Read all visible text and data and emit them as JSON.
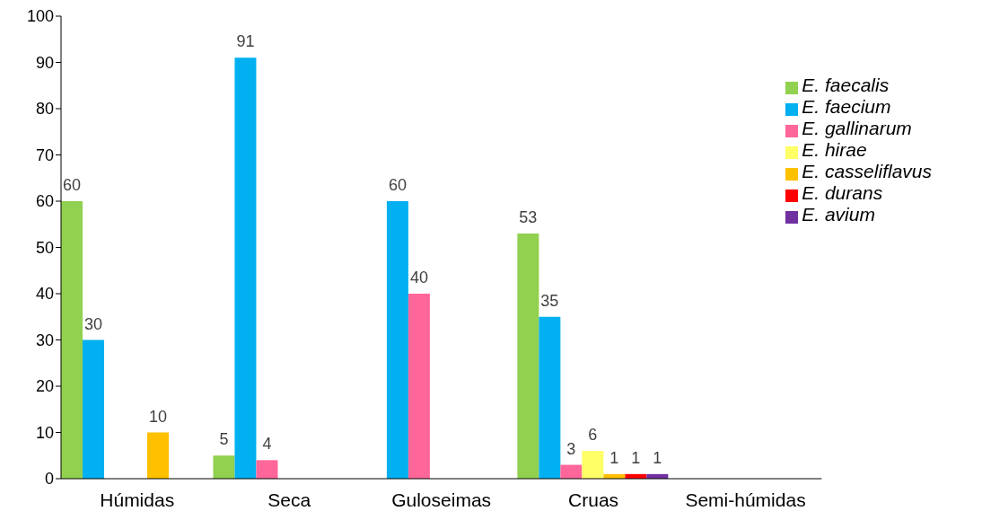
{
  "chart_data": {
    "type": "bar",
    "categories": [
      "Húmidas",
      "Seca",
      "Guloseimas",
      "Cruas",
      "Semi-húmidas"
    ],
    "series": [
      {
        "name": "E. faecalis",
        "color": "#92d050",
        "values": [
          60,
          5,
          null,
          53,
          null
        ]
      },
      {
        "name": "E. faecium",
        "color": "#00b0f0",
        "values": [
          30,
          91,
          60,
          35,
          null
        ]
      },
      {
        "name": "E. gallinarum",
        "color": "#ff6699",
        "values": [
          null,
          4,
          40,
          3,
          null
        ]
      },
      {
        "name": "E. hirae",
        "color": "#ffff66",
        "values": [
          null,
          null,
          null,
          6,
          null
        ]
      },
      {
        "name": "E. casseliflavus",
        "color": "#ffc000",
        "values": [
          10,
          null,
          null,
          1,
          null
        ]
      },
      {
        "name": "E. durans",
        "color": "#ff0000",
        "values": [
          null,
          null,
          null,
          1,
          null
        ]
      },
      {
        "name": "E. avium",
        "color": "#7030a0",
        "values": [
          null,
          null,
          null,
          1,
          null
        ]
      }
    ],
    "ylim": [
      0,
      100
    ],
    "yticks": [
      0,
      10,
      20,
      30,
      40,
      50,
      60,
      70,
      80,
      90,
      100
    ],
    "data_labels": true,
    "grid": false,
    "legend": "right"
  }
}
